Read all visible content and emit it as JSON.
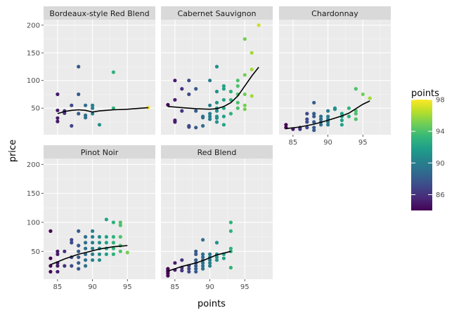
{
  "chart_data": {
    "type": "scatter",
    "facet_by": "variety",
    "xlabel": "points",
    "ylabel": "price",
    "xlim": [
      83,
      99
    ],
    "ylim": [
      2,
      210
    ],
    "x_ticks": [
      85,
      90,
      95
    ],
    "y_ticks": [
      50,
      100,
      150,
      200
    ],
    "color_by": "points",
    "legend": {
      "title": "points",
      "placement": "right",
      "ticks": [
        86,
        90,
        94,
        98
      ],
      "range": [
        84,
        98
      ],
      "colormap": [
        "#440154",
        "#482878",
        "#3e4a89",
        "#31688e",
        "#26828e",
        "#1f9e89",
        "#35b779",
        "#6ece58",
        "#b5de2b",
        "#fde725"
      ]
    },
    "colors": {
      "panel": "#ebebeb",
      "grid_major": "#ffffff",
      "strip": "#d9d9d9",
      "smooth": "#000000"
    },
    "facets": [
      {
        "name": "Bordeaux-style Red Blend",
        "points": [
          [
            85,
            75
          ],
          [
            85,
            46
          ],
          [
            85,
            32
          ],
          [
            85,
            26
          ],
          [
            86,
            45
          ],
          [
            86,
            41
          ],
          [
            87,
            55
          ],
          [
            87,
            18
          ],
          [
            88,
            125
          ],
          [
            88,
            75
          ],
          [
            88,
            40
          ],
          [
            89,
            55
          ],
          [
            89,
            37
          ],
          [
            89,
            33
          ],
          [
            90,
            55
          ],
          [
            90,
            50
          ],
          [
            90,
            40
          ],
          [
            91,
            20
          ],
          [
            93,
            115
          ],
          [
            93,
            50
          ],
          [
            98,
            51
          ]
        ],
        "smooth": [
          [
            85,
            40
          ],
          [
            86,
            44
          ],
          [
            87,
            46
          ],
          [
            88,
            47
          ],
          [
            89,
            46
          ],
          [
            90,
            43
          ],
          [
            91,
            45
          ],
          [
            92,
            46
          ],
          [
            93,
            47
          ],
          [
            95,
            48
          ],
          [
            98,
            51
          ]
        ]
      },
      {
        "name": "Cabernet Sauvignon",
        "points": [
          [
            84,
            56
          ],
          [
            85,
            100
          ],
          [
            85,
            65
          ],
          [
            85,
            28
          ],
          [
            85,
            25
          ],
          [
            86,
            85
          ],
          [
            86,
            45
          ],
          [
            87,
            100
          ],
          [
            87,
            75
          ],
          [
            87,
            18
          ],
          [
            87,
            16
          ],
          [
            88,
            85
          ],
          [
            88,
            45
          ],
          [
            88,
            15
          ],
          [
            89,
            35
          ],
          [
            89,
            33
          ],
          [
            89,
            18
          ],
          [
            90,
            100
          ],
          [
            90,
            55
          ],
          [
            90,
            40
          ],
          [
            90,
            35
          ],
          [
            90,
            30
          ],
          [
            91,
            125
          ],
          [
            91,
            80
          ],
          [
            91,
            60
          ],
          [
            91,
            50
          ],
          [
            91,
            45
          ],
          [
            91,
            35
          ],
          [
            91,
            32
          ],
          [
            91,
            25
          ],
          [
            92,
            90
          ],
          [
            92,
            85
          ],
          [
            92,
            65
          ],
          [
            92,
            50
          ],
          [
            92,
            35
          ],
          [
            92,
            20
          ],
          [
            93,
            80
          ],
          [
            93,
            65
          ],
          [
            93,
            40
          ],
          [
            94,
            100
          ],
          [
            94,
            90
          ],
          [
            94,
            75
          ],
          [
            94,
            60
          ],
          [
            94,
            50
          ],
          [
            95,
            175
          ],
          [
            95,
            110
          ],
          [
            95,
            75
          ],
          [
            95,
            55
          ],
          [
            95,
            48
          ],
          [
            96,
            150
          ],
          [
            96,
            120
          ],
          [
            96,
            72
          ],
          [
            97,
            200
          ]
        ],
        "smooth": [
          [
            84,
            53
          ],
          [
            86,
            51
          ],
          [
            88,
            49
          ],
          [
            90,
            48
          ],
          [
            91,
            49
          ],
          [
            92,
            53
          ],
          [
            93,
            60
          ],
          [
            94,
            72
          ],
          [
            95,
            90
          ],
          [
            96,
            108
          ],
          [
            97,
            124
          ]
        ]
      },
      {
        "name": "Chardonnay",
        "points": [
          [
            84,
            20
          ],
          [
            84,
            15
          ],
          [
            85,
            12
          ],
          [
            86,
            15
          ],
          [
            86,
            12
          ],
          [
            87,
            40
          ],
          [
            87,
            30
          ],
          [
            87,
            25
          ],
          [
            87,
            15
          ],
          [
            88,
            60
          ],
          [
            88,
            40
          ],
          [
            88,
            35
          ],
          [
            88,
            25
          ],
          [
            88,
            15
          ],
          [
            88,
            10
          ],
          [
            89,
            35
          ],
          [
            89,
            30
          ],
          [
            89,
            25
          ],
          [
            89,
            20
          ],
          [
            90,
            35
          ],
          [
            90,
            30
          ],
          [
            90,
            25
          ],
          [
            90,
            20
          ],
          [
            90,
            45
          ],
          [
            91,
            50
          ],
          [
            91,
            48
          ],
          [
            92,
            40
          ],
          [
            92,
            35
          ],
          [
            92,
            28
          ],
          [
            92,
            20
          ],
          [
            93,
            50
          ],
          [
            93,
            35
          ],
          [
            94,
            85
          ],
          [
            94,
            45
          ],
          [
            94,
            40
          ],
          [
            94,
            30
          ],
          [
            95,
            75
          ],
          [
            96,
            68
          ]
        ],
        "smooth": [
          [
            84,
            13
          ],
          [
            86,
            16
          ],
          [
            88,
            21
          ],
          [
            90,
            28
          ],
          [
            92,
            36
          ],
          [
            93,
            41
          ],
          [
            94,
            49
          ],
          [
            95,
            57
          ],
          [
            96,
            63
          ]
        ]
      },
      {
        "name": "Pinot Noir",
        "points": [
          [
            84,
            85
          ],
          [
            84,
            38
          ],
          [
            84,
            25
          ],
          [
            84,
            15
          ],
          [
            85,
            50
          ],
          [
            85,
            45
          ],
          [
            85,
            30
          ],
          [
            85,
            25
          ],
          [
            85,
            15
          ],
          [
            86,
            50
          ],
          [
            86,
            25
          ],
          [
            87,
            70
          ],
          [
            87,
            65
          ],
          [
            87,
            40
          ],
          [
            87,
            25
          ],
          [
            88,
            85
          ],
          [
            88,
            60
          ],
          [
            88,
            50
          ],
          [
            88,
            40
          ],
          [
            88,
            30
          ],
          [
            88,
            20
          ],
          [
            89,
            75
          ],
          [
            89,
            65
          ],
          [
            89,
            55
          ],
          [
            89,
            45
          ],
          [
            89,
            35
          ],
          [
            89,
            25
          ],
          [
            90,
            85
          ],
          [
            90,
            75
          ],
          [
            90,
            65
          ],
          [
            90,
            55
          ],
          [
            90,
            45
          ],
          [
            90,
            35
          ],
          [
            91,
            75
          ],
          [
            91,
            65
          ],
          [
            91,
            55
          ],
          [
            91,
            45
          ],
          [
            91,
            35
          ],
          [
            92,
            105
          ],
          [
            92,
            75
          ],
          [
            92,
            65
          ],
          [
            92,
            55
          ],
          [
            92,
            45
          ],
          [
            93,
            100
          ],
          [
            93,
            75
          ],
          [
            93,
            65
          ],
          [
            93,
            55
          ],
          [
            93,
            45
          ],
          [
            94,
            100
          ],
          [
            94,
            95
          ],
          [
            94,
            75
          ],
          [
            94,
            60
          ],
          [
            94,
            50
          ],
          [
            95,
            48
          ]
        ],
        "smooth": [
          [
            84,
            27
          ],
          [
            85,
            32
          ],
          [
            86,
            37
          ],
          [
            87,
            41
          ],
          [
            88,
            45
          ],
          [
            89,
            48
          ],
          [
            90,
            51
          ],
          [
            91,
            54
          ],
          [
            92,
            56
          ],
          [
            93,
            58
          ],
          [
            94,
            59
          ],
          [
            95,
            60
          ]
        ]
      },
      {
        "name": "Red Blend",
        "points": [
          [
            84,
            20
          ],
          [
            84,
            17
          ],
          [
            84,
            15
          ],
          [
            84,
            12
          ],
          [
            84,
            8
          ],
          [
            85,
            30
          ],
          [
            85,
            18
          ],
          [
            86,
            35
          ],
          [
            86,
            22
          ],
          [
            86,
            17
          ],
          [
            87,
            25
          ],
          [
            87,
            20
          ],
          [
            87,
            15
          ],
          [
            88,
            50
          ],
          [
            88,
            45
          ],
          [
            88,
            35
          ],
          [
            88,
            30
          ],
          [
            88,
            25
          ],
          [
            88,
            20
          ],
          [
            88,
            15
          ],
          [
            89,
            70
          ],
          [
            89,
            45
          ],
          [
            89,
            40
          ],
          [
            89,
            35
          ],
          [
            89,
            30
          ],
          [
            89,
            25
          ],
          [
            89,
            20
          ],
          [
            90,
            45
          ],
          [
            90,
            40
          ],
          [
            90,
            35
          ],
          [
            90,
            30
          ],
          [
            90,
            25
          ],
          [
            91,
            65
          ],
          [
            91,
            45
          ],
          [
            91,
            40
          ],
          [
            91,
            35
          ],
          [
            92,
            45
          ],
          [
            92,
            38
          ],
          [
            93,
            100
          ],
          [
            93,
            85
          ],
          [
            93,
            55
          ],
          [
            93,
            50
          ],
          [
            93,
            22
          ]
        ],
        "smooth": [
          [
            84,
            16
          ],
          [
            85,
            20
          ],
          [
            86,
            24
          ],
          [
            87,
            27
          ],
          [
            88,
            30
          ],
          [
            89,
            34
          ],
          [
            90,
            39
          ],
          [
            91,
            44
          ],
          [
            92,
            47
          ],
          [
            93,
            50
          ]
        ]
      }
    ]
  }
}
